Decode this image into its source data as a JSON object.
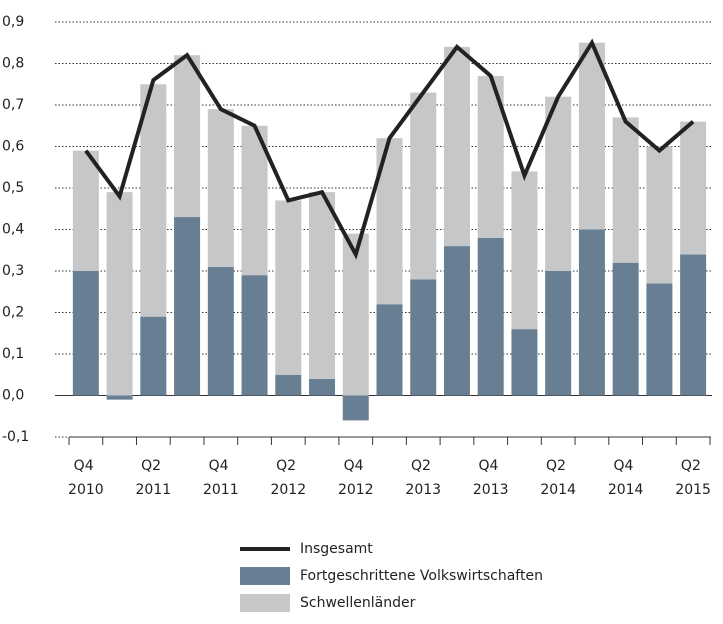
{
  "chart_data": {
    "type": "stacked-bar-line",
    "categories": [
      "Q4 2010",
      null,
      "Q2 2011",
      null,
      "Q4 2011",
      null,
      "Q2 2012",
      null,
      "Q4 2012",
      null,
      "Q2 2013",
      null,
      "Q4 2013",
      null,
      "Q2 2014",
      null,
      "Q4 2014",
      null,
      "Q2 2015"
    ],
    "series": [
      {
        "name": "Fortgeschrittene Volkswirtschaften",
        "color": "#687f93",
        "kind": "bar",
        "values": [
          0.3,
          -0.01,
          0.19,
          0.43,
          0.31,
          0.29,
          0.05,
          0.04,
          -0.06,
          0.22,
          0.28,
          0.36,
          0.38,
          0.16,
          0.3,
          0.4,
          0.32,
          0.27,
          0.34
        ]
      },
      {
        "name": "Schwellenländer",
        "color": "#c6c7c8",
        "kind": "bar",
        "values": [
          0.29,
          0.49,
          0.56,
          0.39,
          0.38,
          0.36,
          0.42,
          0.45,
          0.39,
          0.4,
          0.45,
          0.48,
          0.39,
          0.38,
          0.42,
          0.45,
          0.35,
          0.33,
          0.32
        ]
      },
      {
        "name": "Insgesamt",
        "color": "#222222",
        "kind": "line",
        "values": [
          0.59,
          0.48,
          0.76,
          0.82,
          0.69,
          0.65,
          0.47,
          0.49,
          0.34,
          0.62,
          0.73,
          0.84,
          0.77,
          0.53,
          0.72,
          0.85,
          0.66,
          0.59,
          0.66
        ]
      }
    ],
    "ylim": [
      -0.1,
      0.9
    ],
    "yticks": [
      {
        "value": -0.1,
        "label": "-0,1"
      },
      {
        "value": 0,
        "label": "0,0"
      },
      {
        "value": 0.1,
        "label": "0,1"
      },
      {
        "value": 0.2,
        "label": "0,2"
      },
      {
        "value": 0.3,
        "label": "0,3"
      },
      {
        "value": 0.4,
        "label": "0,4"
      },
      {
        "value": 0.5,
        "label": "0,5"
      },
      {
        "value": 0.6,
        "label": "0,6"
      },
      {
        "value": 0.7,
        "label": "0,7"
      },
      {
        "value": 0.8,
        "label": "0,8"
      },
      {
        "value": 0.9,
        "label": "0,9"
      }
    ],
    "grid": true
  }
}
